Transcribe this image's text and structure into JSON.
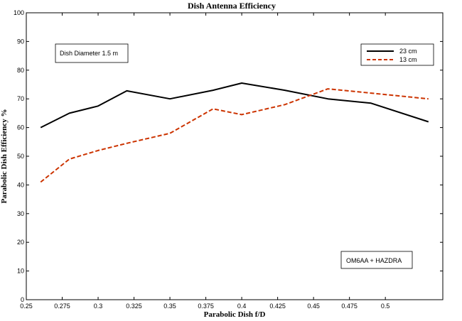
{
  "chart_data": {
    "type": "line",
    "title": "Dish Antenna  Efficiency",
    "xlabel": "Parabolic Dish f/D",
    "ylabel": "Parabolic Dish Efficiency %",
    "xlim": [
      0.25,
      0.54
    ],
    "ylim": [
      0,
      100
    ],
    "x_ticks": [
      "0.25",
      "0.275",
      "0.3",
      "0.325",
      "0.35",
      "0.375",
      "0.4",
      "0.425",
      "0.45",
      "0.475",
      "0.5"
    ],
    "x_tick_values": [
      0.25,
      0.275,
      0.3,
      0.325,
      0.35,
      0.375,
      0.4,
      0.425,
      0.45,
      0.475,
      0.5
    ],
    "y_ticks": [
      "0",
      "10",
      "20",
      "30",
      "40",
      "50",
      "60",
      "70",
      "80",
      "90",
      "100"
    ],
    "y_tick_values": [
      0,
      10,
      20,
      30,
      40,
      50,
      60,
      70,
      80,
      90,
      100
    ],
    "grid": false,
    "legend_position": "top-right",
    "series": [
      {
        "name": "23 cm",
        "color": "#000000",
        "dash": "solid",
        "x": [
          0.26,
          0.28,
          0.3,
          0.32,
          0.35,
          0.38,
          0.4,
          0.43,
          0.46,
          0.49,
          0.53
        ],
        "y": [
          60,
          65,
          67.5,
          72.8,
          70,
          73,
          75.5,
          73,
          70,
          68.5,
          62
        ]
      },
      {
        "name": "13 cm",
        "color": "#cc3300",
        "dash": "dashed",
        "x": [
          0.26,
          0.28,
          0.3,
          0.32,
          0.35,
          0.38,
          0.4,
          0.43,
          0.46,
          0.49,
          0.53
        ],
        "y": [
          41,
          49,
          52,
          54.5,
          58,
          66.5,
          64.5,
          68,
          73.5,
          72,
          70
        ]
      }
    ],
    "annotations": [
      {
        "text": "Dish Diameter 1.5 m",
        "position": "top-left"
      },
      {
        "text": "OM6AA + HAZDRA",
        "position": "bottom-right"
      }
    ]
  }
}
